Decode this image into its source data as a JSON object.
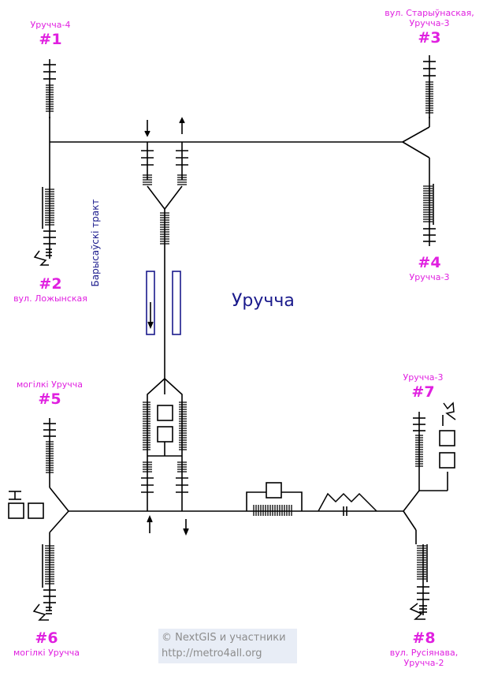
{
  "station": {
    "name": "Уручча"
  },
  "platform_street": "Барысаўскі тракт",
  "exits": [
    {
      "number": "#1",
      "lines": [
        "Уручча-4"
      ]
    },
    {
      "number": "#2",
      "lines": [
        "вул. Ложынская"
      ]
    },
    {
      "number": "#3",
      "lines": [
        "вул. Старыўнаская,",
        "Уручча-3"
      ]
    },
    {
      "number": "#4",
      "lines": [
        "Уручча-3"
      ]
    },
    {
      "number": "#5",
      "lines": [
        "могілкі Уручча"
      ]
    },
    {
      "number": "#6",
      "lines": [
        "могілкі Уручча"
      ]
    },
    {
      "number": "#7",
      "lines": [
        "Уручча-3"
      ]
    },
    {
      "number": "#8",
      "lines": [
        "вул. Русіянава,",
        "Уручча-2"
      ]
    }
  ],
  "credit": {
    "line1": "© NextGIS и участники",
    "line2": "http://metro4all.org"
  },
  "colors": {
    "exit_label": "#e020e0",
    "station_text": "#1a1a8c",
    "line": "#000000"
  }
}
